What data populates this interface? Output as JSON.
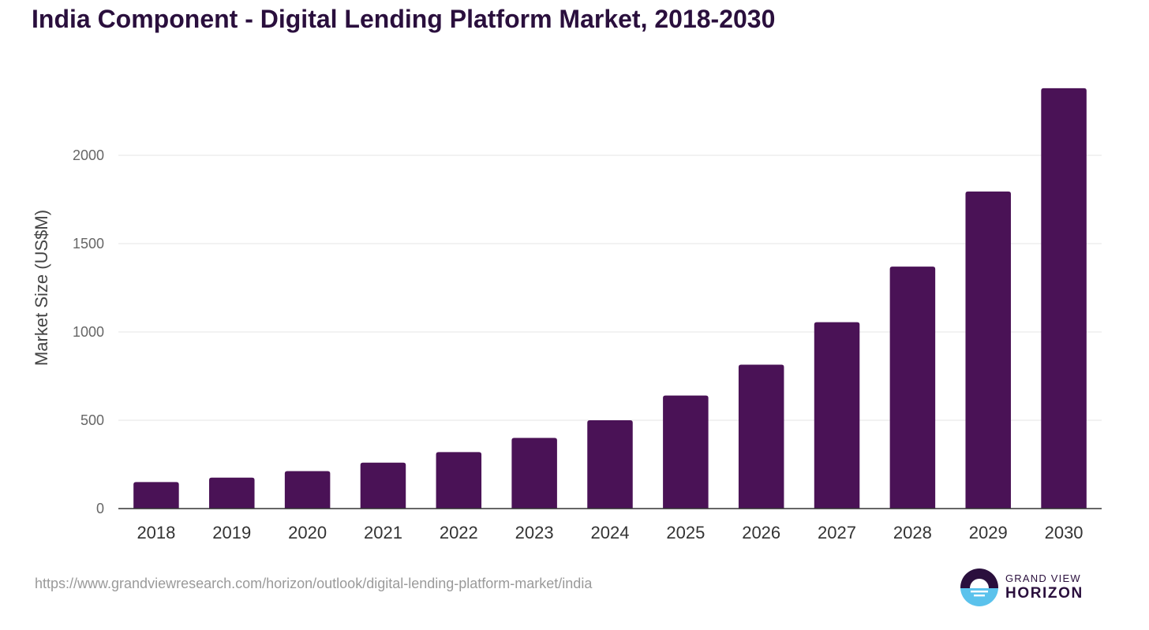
{
  "header": {
    "title": "India Component - Digital Lending Platform Market, 2018-2030"
  },
  "chart_data": {
    "type": "bar",
    "title": "India Component - Digital Lending Platform Market, 2018-2030",
    "xlabel": "",
    "ylabel": "Market Size (US$M)",
    "categories": [
      "2018",
      "2019",
      "2020",
      "2021",
      "2022",
      "2023",
      "2024",
      "2025",
      "2026",
      "2027",
      "2028",
      "2029",
      "2030"
    ],
    "values": [
      150,
      175,
      212,
      260,
      320,
      400,
      500,
      640,
      815,
      1055,
      1370,
      1795,
      2380
    ],
    "yticks": [
      0,
      500,
      1000,
      1500,
      2000
    ],
    "ylim": [
      0,
      2500
    ],
    "grid": true,
    "bar_color": "#4a1256"
  },
  "footer": {
    "source_url": "https://www.grandviewresearch.com/horizon/outlook/digital-lending-platform-market/india"
  },
  "logo": {
    "line1": "GRAND VIEW",
    "line2": "HORIZON",
    "dark_color": "#2a0f3d",
    "light_color": "#5bc2ec"
  }
}
